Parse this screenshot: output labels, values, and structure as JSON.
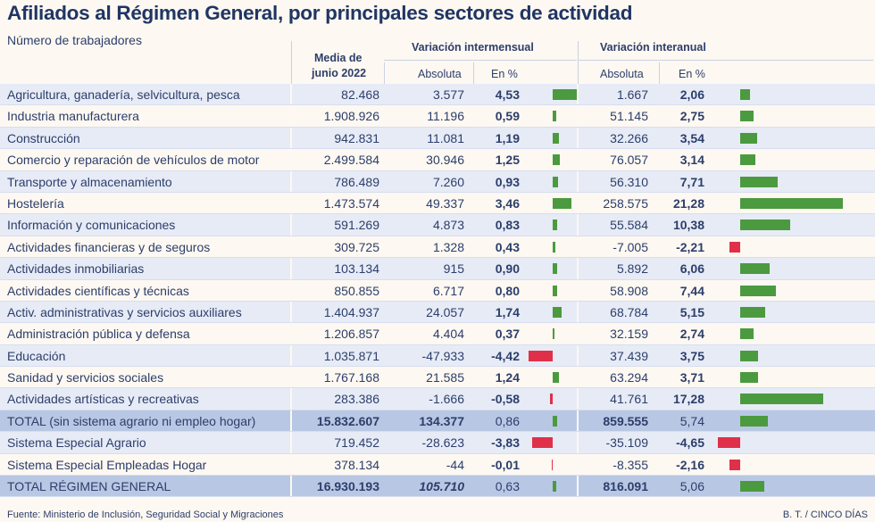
{
  "title": "Afiliados al Régimen General, por principales sectores de actividad",
  "subtitle": "Número de trabajadores",
  "headers": {
    "media_line1": "Media de",
    "media_line2": "junio 2022",
    "group_intermensual": "Variación intermensual",
    "group_interanual": "Variación interanual",
    "absoluta": "Absoluta",
    "en_pct": "En %"
  },
  "colors": {
    "positive": "#4c9a3f",
    "negative": "#e03049",
    "alt_row": "#e6ebf6",
    "total_row": "#b8c8e4",
    "title": "#1f3564"
  },
  "rows": [
    {
      "name": "Agricultura, ganadería, selvicultura, pesca",
      "media": "82.468",
      "abs1": "3.577",
      "pct1": "4,53",
      "abs2": "1.667",
      "pct2": "2,06",
      "v1": 4.53,
      "v2": 2.06
    },
    {
      "name": "Industria manufacturera",
      "media": "1.908.926",
      "abs1": "11.196",
      "pct1": "0,59",
      "abs2": "51.145",
      "pct2": "2,75",
      "v1": 0.59,
      "v2": 2.75
    },
    {
      "name": "Construcción",
      "media": "942.831",
      "abs1": "11.081",
      "pct1": "1,19",
      "abs2": "32.266",
      "pct2": "3,54",
      "v1": 1.19,
      "v2": 3.54
    },
    {
      "name": "Comercio y reparación de vehículos de motor",
      "media": "2.499.584",
      "abs1": "30.946",
      "pct1": "1,25",
      "abs2": "76.057",
      "pct2": "3,14",
      "v1": 1.25,
      "v2": 3.14
    },
    {
      "name": "Transporte y almacenamiento",
      "media": "786.489",
      "abs1": "7.260",
      "pct1": "0,93",
      "abs2": "56.310",
      "pct2": "7,71",
      "v1": 0.93,
      "v2": 7.71
    },
    {
      "name": "Hostelería",
      "media": "1.473.574",
      "abs1": "49.337",
      "pct1": "3,46",
      "abs2": "258.575",
      "pct2": "21,28",
      "v1": 3.46,
      "v2": 21.28
    },
    {
      "name": "Información y comunicaciones",
      "media": "591.269",
      "abs1": "4.873",
      "pct1": "0,83",
      "abs2": "55.584",
      "pct2": "10,38",
      "v1": 0.83,
      "v2": 10.38
    },
    {
      "name": "Actividades financieras y de seguros",
      "media": "309.725",
      "abs1": "1.328",
      "pct1": "0,43",
      "abs2": "-7.005",
      "pct2": "-2,21",
      "v1": 0.43,
      "v2": -2.21
    },
    {
      "name": "Actividades inmobiliarias",
      "media": "103.134",
      "abs1": "915",
      "pct1": "0,90",
      "abs2": "5.892",
      "pct2": "6,06",
      "v1": 0.9,
      "v2": 6.06
    },
    {
      "name": "Actividades científicas y técnicas",
      "media": "850.855",
      "abs1": "6.717",
      "pct1": "0,80",
      "abs2": "58.908",
      "pct2": "7,44",
      "v1": 0.8,
      "v2": 7.44
    },
    {
      "name": "Activ. administrativas y servicios auxiliares",
      "media": "1.404.937",
      "abs1": "24.057",
      "pct1": "1,74",
      "abs2": "68.784",
      "pct2": "5,15",
      "v1": 1.74,
      "v2": 5.15
    },
    {
      "name": "Administración pública y defensa",
      "media": "1.206.857",
      "abs1": "4.404",
      "pct1": "0,37",
      "abs2": "32.159",
      "pct2": "2,74",
      "v1": 0.37,
      "v2": 2.74
    },
    {
      "name": "Educación",
      "media": "1.035.871",
      "abs1": "-47.933",
      "pct1": "-4,42",
      "abs2": "37.439",
      "pct2": "3,75",
      "v1": -4.42,
      "v2": 3.75
    },
    {
      "name": "Sanidad y servicios sociales",
      "media": "1.767.168",
      "abs1": "21.585",
      "pct1": "1,24",
      "abs2": "63.294",
      "pct2": "3,71",
      "v1": 1.24,
      "v2": 3.71
    },
    {
      "name": "Actividades artísticas y recreativas",
      "media": "283.386",
      "abs1": "-1.666",
      "pct1": "-0,58",
      "abs2": "41.761",
      "pct2": "17,28",
      "v1": -0.58,
      "v2": 17.28
    },
    {
      "name": "TOTAL (sin sistema agrario ni empleo hogar)",
      "media": "15.832.607",
      "abs1": "134.377",
      "pct1": "0,86",
      "abs2": "859.555",
      "pct2": "5,74",
      "v1": 0.86,
      "v2": 5.74,
      "total": true
    },
    {
      "name": "Sistema Especial Agrario",
      "media": "719.452",
      "abs1": "-28.623",
      "pct1": "-3,83",
      "abs2": "-35.109",
      "pct2": "-4,65",
      "v1": -3.83,
      "v2": -4.65
    },
    {
      "name": "Sistema Especial Empleadas Hogar",
      "media": "378.134",
      "abs1": "-44",
      "pct1": "-0,01",
      "abs2": "-8.355",
      "pct2": "-2,16",
      "v1": -0.01,
      "v2": -2.16
    },
    {
      "name": "TOTAL RÉGIMEN GENERAL",
      "media": "16.930.193",
      "abs1": "105.710",
      "pct1": "0,63",
      "abs2": "816.091",
      "pct2": "5,06",
      "v1": 0.63,
      "v2": 5.06,
      "total": true,
      "abs1_italic": true
    }
  ],
  "footer": {
    "source": "Fuente: Ministerio de Inclusión, Seguridad Social y Migraciones",
    "credit": "B. T. / CINCO DÍAS"
  }
}
